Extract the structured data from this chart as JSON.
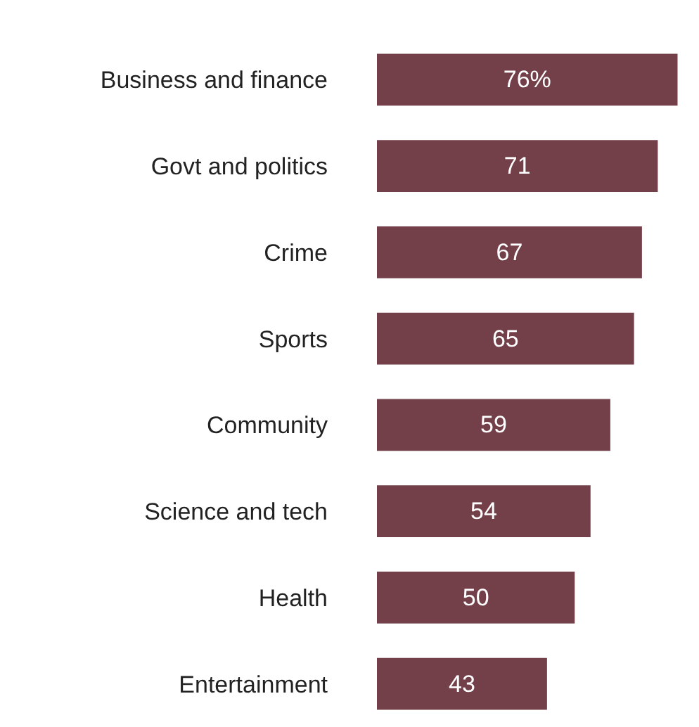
{
  "chart_data": {
    "type": "bar",
    "orientation": "horizontal",
    "categories": [
      "Business and finance",
      "Govt and politics",
      "Crime",
      "Sports",
      "Community",
      "Science and tech",
      "Health",
      "Entertainment"
    ],
    "values": [
      76,
      71,
      67,
      65,
      59,
      54,
      50,
      43
    ],
    "value_labels": [
      "76%",
      "71",
      "67",
      "65",
      "59",
      "54",
      "50",
      "43"
    ],
    "color": "#73404a"
  }
}
